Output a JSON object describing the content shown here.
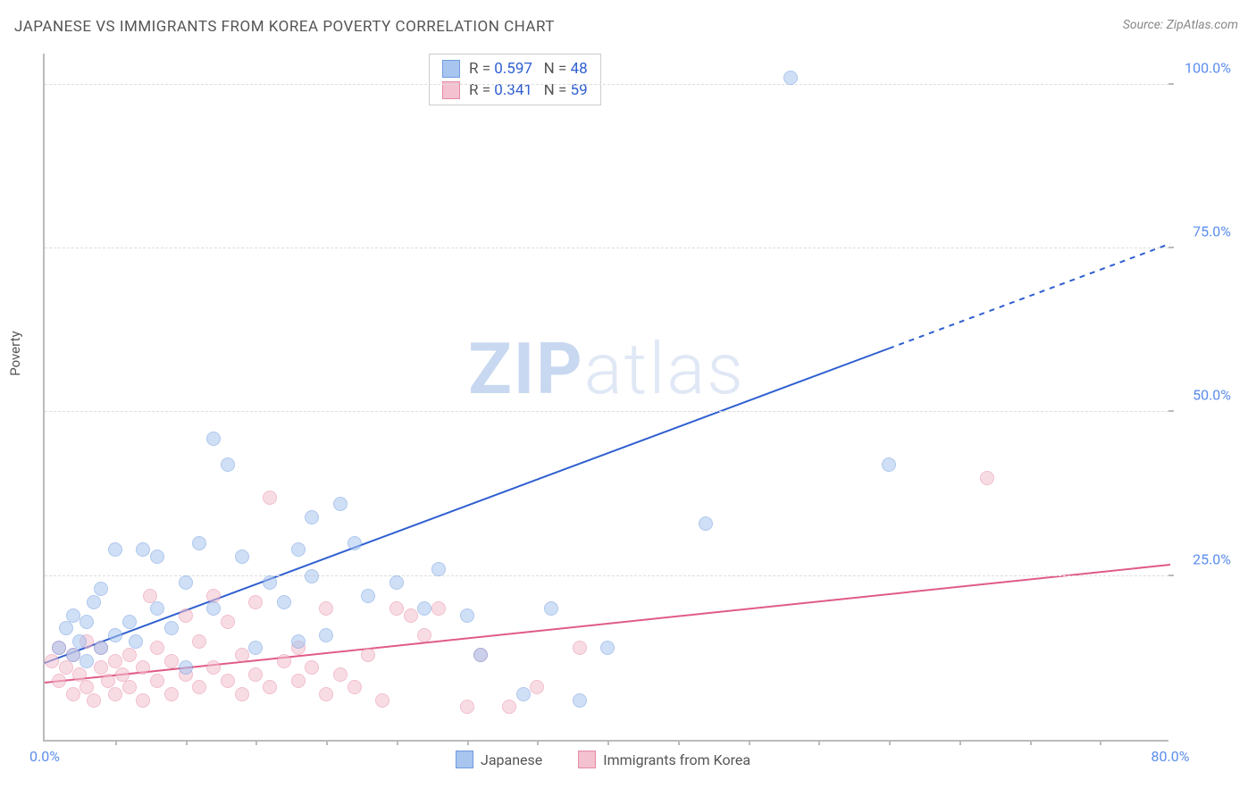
{
  "title": "JAPANESE VS IMMIGRANTS FROM KOREA POVERTY CORRELATION CHART",
  "source": "Source: ZipAtlas.com",
  "ylabel": "Poverty",
  "watermark": {
    "bold": "ZIP",
    "rest": "atlas"
  },
  "chart": {
    "type": "scatter",
    "xlim": [
      0,
      80
    ],
    "ylim": [
      0,
      105
    ],
    "x_ticks": [
      0,
      80
    ],
    "x_tick_labels": [
      "0.0%",
      "80.0%"
    ],
    "x_minor_ticks": [
      5,
      10,
      15,
      20,
      25,
      30,
      35,
      40,
      45,
      50,
      55,
      60,
      65,
      70,
      75
    ],
    "y_ticks": [
      25,
      50,
      75,
      100
    ],
    "y_tick_labels": [
      "25.0%",
      "50.0%",
      "75.0%",
      "100.0%"
    ],
    "tick_color": "#5b8def",
    "grid_color": "#dddddd",
    "axis_color": "#bbbbbb",
    "background_color": "#ffffff",
    "marker_radius": 8,
    "marker_opacity": 0.55,
    "series": [
      {
        "name": "Japanese",
        "fill": "#a8c5ef",
        "stroke": "#6f9be0",
        "R": "0.597",
        "N": "48",
        "regression": {
          "x1": 0,
          "y1": 12,
          "x2": 80,
          "y2": 76,
          "solid_until_x": 60,
          "color": "#2f5fd0",
          "width": 2
        },
        "points": [
          [
            1,
            14
          ],
          [
            1.5,
            17
          ],
          [
            2,
            13
          ],
          [
            2,
            19
          ],
          [
            2.5,
            15
          ],
          [
            3,
            12
          ],
          [
            3,
            18
          ],
          [
            3.5,
            21
          ],
          [
            4,
            14
          ],
          [
            4,
            23
          ],
          [
            5,
            16
          ],
          [
            5,
            29
          ],
          [
            6,
            18
          ],
          [
            6.5,
            15
          ],
          [
            7,
            29
          ],
          [
            8,
            20
          ],
          [
            8,
            28
          ],
          [
            9,
            17
          ],
          [
            10,
            11
          ],
          [
            10,
            24
          ],
          [
            11,
            30
          ],
          [
            12,
            20
          ],
          [
            12,
            46
          ],
          [
            13,
            42
          ],
          [
            14,
            28
          ],
          [
            15,
            14
          ],
          [
            16,
            24
          ],
          [
            17,
            21
          ],
          [
            18,
            15
          ],
          [
            18,
            29
          ],
          [
            19,
            25
          ],
          [
            19,
            34
          ],
          [
            20,
            16
          ],
          [
            21,
            36
          ],
          [
            22,
            30
          ],
          [
            23,
            22
          ],
          [
            25,
            24
          ],
          [
            27,
            20
          ],
          [
            28,
            26
          ],
          [
            30,
            19
          ],
          [
            31,
            13
          ],
          [
            34,
            7
          ],
          [
            36,
            20
          ],
          [
            38,
            6
          ],
          [
            40,
            14
          ],
          [
            47,
            33
          ],
          [
            53,
            101
          ],
          [
            60,
            42
          ]
        ]
      },
      {
        "name": "Immigrants from Korea",
        "fill": "#f3c1cf",
        "stroke": "#e68aa5",
        "R": "0.341",
        "N": "59",
        "regression": {
          "x1": 0,
          "y1": 9,
          "x2": 80,
          "y2": 27,
          "solid_until_x": 80,
          "color": "#e05b87",
          "width": 2
        },
        "points": [
          [
            0.5,
            12
          ],
          [
            1,
            9
          ],
          [
            1,
            14
          ],
          [
            1.5,
            11
          ],
          [
            2,
            7
          ],
          [
            2,
            13
          ],
          [
            2.5,
            10
          ],
          [
            3,
            8
          ],
          [
            3,
            15
          ],
          [
            3.5,
            6
          ],
          [
            4,
            11
          ],
          [
            4,
            14
          ],
          [
            4.5,
            9
          ],
          [
            5,
            7
          ],
          [
            5,
            12
          ],
          [
            5.5,
            10
          ],
          [
            6,
            8
          ],
          [
            6,
            13
          ],
          [
            7,
            6
          ],
          [
            7,
            11
          ],
          [
            7.5,
            22
          ],
          [
            8,
            9
          ],
          [
            8,
            14
          ],
          [
            9,
            7
          ],
          [
            9,
            12
          ],
          [
            10,
            10
          ],
          [
            10,
            19
          ],
          [
            11,
            8
          ],
          [
            11,
            15
          ],
          [
            12,
            11
          ],
          [
            12,
            22
          ],
          [
            13,
            9
          ],
          [
            13,
            18
          ],
          [
            14,
            7
          ],
          [
            14,
            13
          ],
          [
            15,
            10
          ],
          [
            15,
            21
          ],
          [
            16,
            8
          ],
          [
            16,
            37
          ],
          [
            17,
            12
          ],
          [
            18,
            9
          ],
          [
            18,
            14
          ],
          [
            19,
            11
          ],
          [
            20,
            7
          ],
          [
            20,
            20
          ],
          [
            21,
            10
          ],
          [
            22,
            8
          ],
          [
            23,
            13
          ],
          [
            24,
            6
          ],
          [
            25,
            20
          ],
          [
            26,
            19
          ],
          [
            27,
            16
          ],
          [
            28,
            20
          ],
          [
            30,
            5
          ],
          [
            31,
            13
          ],
          [
            33,
            5
          ],
          [
            35,
            8
          ],
          [
            38,
            14
          ],
          [
            67,
            40
          ]
        ]
      }
    ],
    "legend_top": {
      "R_label": "R =",
      "N_label": "N =",
      "value_color": "#2f5fd0",
      "label_color": "#555555"
    },
    "legend_bottom_labels": [
      "Japanese",
      "Immigrants from Korea"
    ]
  }
}
